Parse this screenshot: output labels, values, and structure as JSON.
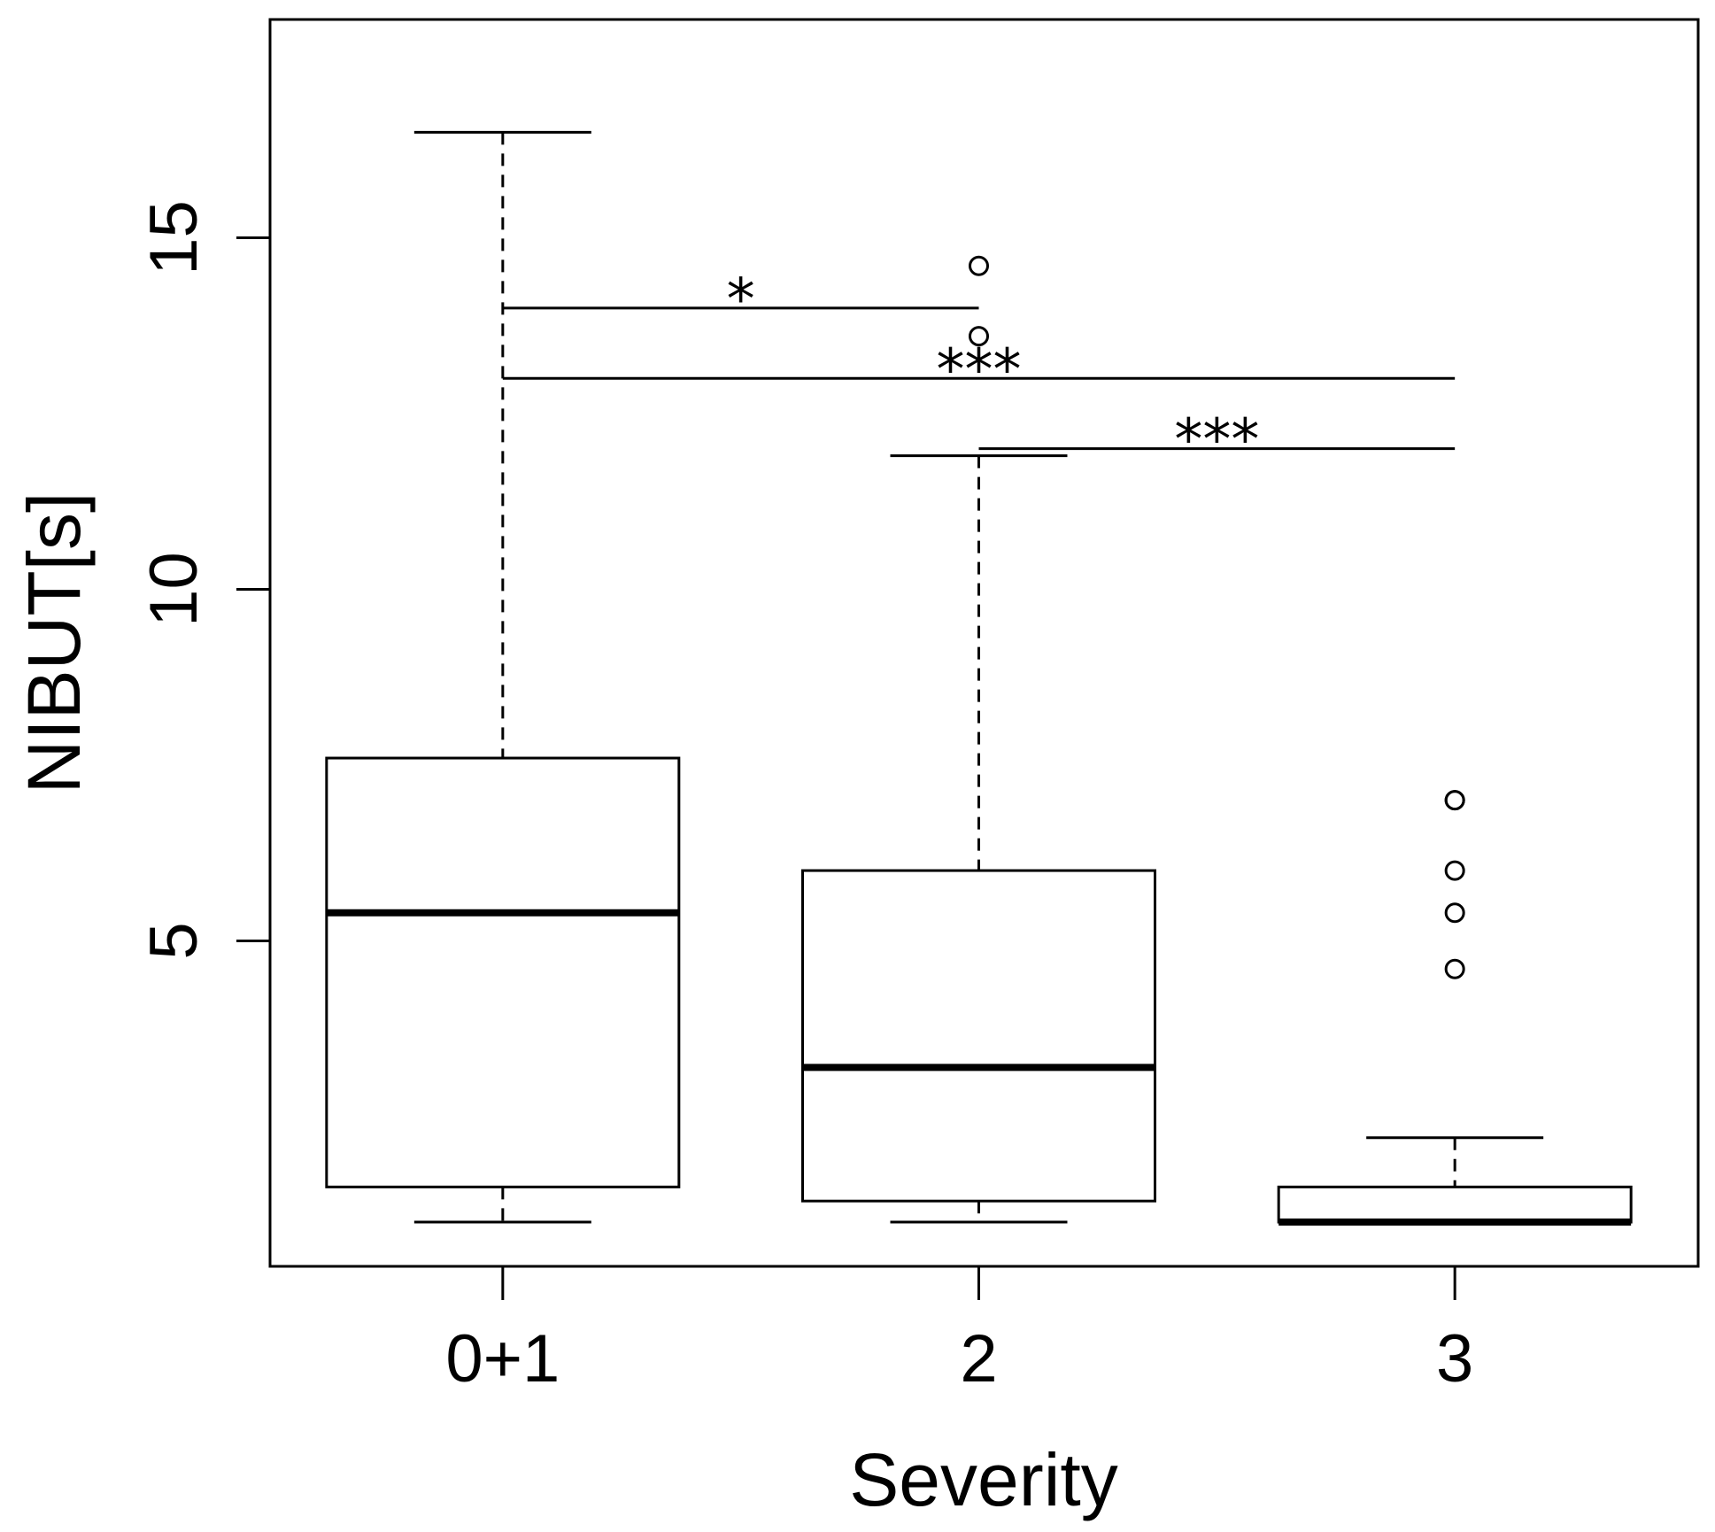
{
  "chart_data": {
    "type": "box",
    "xlabel": "Severity",
    "ylabel": "NIBUT[s]",
    "categories": [
      "0+1",
      "2",
      "3"
    ],
    "ylim": [
      0.9,
      17.5
    ],
    "yticks": [
      5,
      10,
      15
    ],
    "grid": false,
    "legend": "none",
    "boxes": [
      {
        "category": "0+1",
        "whisker_low": 1.0,
        "q1": 1.5,
        "median": 5.4,
        "q3": 7.6,
        "whisker_high": 16.5,
        "outliers": []
      },
      {
        "category": "2",
        "whisker_low": 1.0,
        "q1": 1.3,
        "median": 3.2,
        "q3": 6.0,
        "whisker_high": 11.9,
        "outliers": [
          13.6,
          14.6
        ]
      },
      {
        "category": "3",
        "whisker_low": 1.0,
        "q1": 1.0,
        "median": 1.0,
        "q3": 1.5,
        "whisker_high": 2.2,
        "outliers": [
          4.6,
          5.4,
          6.0,
          7.0,
          7.0
        ]
      }
    ],
    "significance": [
      {
        "from": "0+1",
        "to": "2",
        "y": 14.0,
        "label": "*"
      },
      {
        "from": "0+1",
        "to": "3",
        "y": 13.0,
        "label": "***"
      },
      {
        "from": "2",
        "to": "3",
        "y": 12.0,
        "label": "***"
      }
    ]
  }
}
